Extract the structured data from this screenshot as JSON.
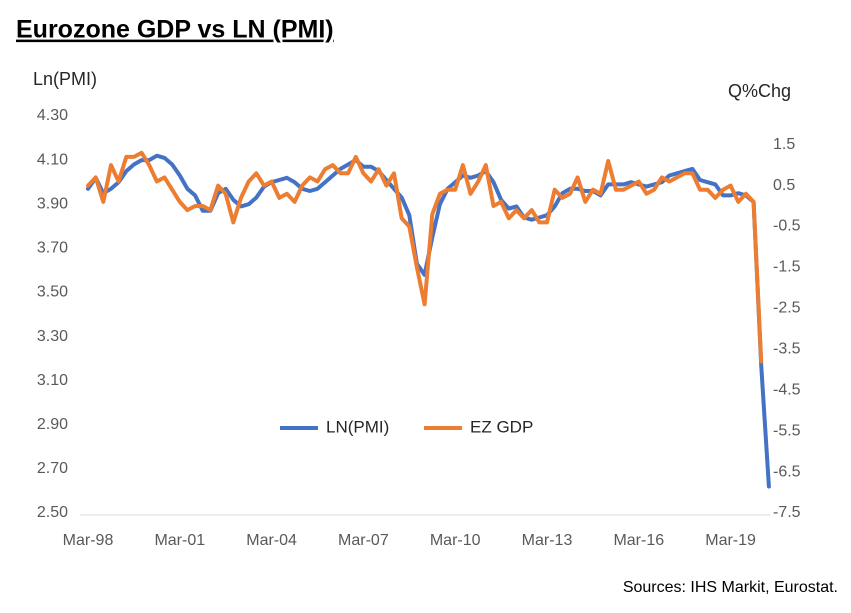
{
  "chart_data": {
    "type": "line",
    "title": "Eurozone GDP vs LN (PMI)",
    "y_axis_label": "Ln(PMI)",
    "y2_axis_label": "Q%Chg",
    "source": "Sources: IHS Markit, Eurostat.",
    "categories": [
      "Mar-98",
      null,
      null,
      null,
      null,
      null,
      null,
      null,
      null,
      null,
      null,
      null,
      "Mar-01",
      null,
      null,
      null,
      null,
      null,
      null,
      null,
      null,
      null,
      null,
      null,
      "Mar-04",
      null,
      null,
      null,
      null,
      null,
      null,
      null,
      null,
      null,
      null,
      null,
      "Mar-07",
      null,
      null,
      null,
      null,
      null,
      null,
      null,
      null,
      null,
      null,
      null,
      "Mar-10",
      null,
      null,
      null,
      null,
      null,
      null,
      null,
      null,
      null,
      null,
      null,
      "Mar-13",
      null,
      null,
      null,
      null,
      null,
      null,
      null,
      null,
      null,
      null,
      null,
      "Mar-16",
      null,
      null,
      null,
      null,
      null,
      null,
      null,
      null,
      null,
      null,
      null,
      "Mar-19",
      null,
      null,
      null,
      null,
      null
    ],
    "series": [
      {
        "name": "LN(PMI)",
        "color": "#4472c4",
        "axis": "y",
        "values": [
          3.97,
          4.02,
          3.95,
          3.97,
          4.0,
          4.05,
          4.08,
          4.1,
          4.1,
          4.12,
          4.11,
          4.08,
          4.03,
          3.97,
          3.94,
          3.87,
          3.87,
          3.95,
          3.97,
          3.92,
          3.89,
          3.9,
          3.93,
          3.98,
          4.0,
          4.01,
          4.02,
          4.0,
          3.97,
          3.96,
          3.97,
          4.0,
          4.03,
          4.06,
          4.08,
          4.1,
          4.07,
          4.07,
          4.05,
          4.01,
          3.97,
          3.93,
          3.85,
          3.63,
          3.58,
          3.75,
          3.9,
          3.97,
          4.0,
          4.03,
          4.02,
          4.03,
          4.05,
          4.0,
          3.92,
          3.88,
          3.89,
          3.84,
          3.83,
          3.84,
          3.85,
          3.89,
          3.95,
          3.97,
          3.97,
          3.96,
          3.96,
          3.94,
          3.99,
          3.99,
          3.99,
          4.0,
          3.99,
          3.98,
          3.99,
          4.0,
          4.03,
          4.04,
          4.05,
          4.06,
          4.01,
          4.0,
          3.99,
          3.94,
          3.94,
          3.95,
          3.94,
          3.91,
          3.17,
          2.62
        ]
      },
      {
        "name": "EZ GDP",
        "color": "#ed7d31",
        "axis": "y2",
        "values": [
          0.5,
          0.7,
          0.1,
          1.0,
          0.6,
          1.2,
          1.2,
          1.3,
          1.0,
          0.6,
          0.7,
          0.4,
          0.1,
          -0.1,
          0.0,
          0.0,
          -0.1,
          0.5,
          0.3,
          -0.4,
          0.2,
          0.6,
          0.8,
          0.5,
          0.6,
          0.2,
          0.3,
          0.1,
          0.5,
          0.7,
          0.6,
          0.9,
          1.0,
          0.8,
          0.8,
          1.2,
          0.8,
          0.6,
          0.9,
          0.5,
          0.8,
          -0.3,
          -0.5,
          -1.5,
          -2.4,
          -0.2,
          0.3,
          0.4,
          0.4,
          1.0,
          0.3,
          0.6,
          1.0,
          0.0,
          0.1,
          -0.3,
          -0.1,
          -0.3,
          -0.1,
          -0.4,
          -0.4,
          0.4,
          0.2,
          0.3,
          0.7,
          0.1,
          0.4,
          0.3,
          1.1,
          0.4,
          0.4,
          0.5,
          0.6,
          0.3,
          0.4,
          0.7,
          0.6,
          0.7,
          0.8,
          0.8,
          0.4,
          0.4,
          0.2,
          0.4,
          0.5,
          0.1,
          0.3,
          0.1,
          -3.8,
          null
        ]
      }
    ],
    "ylim": [
      2.5,
      4.3
    ],
    "yticks": [
      {
        "value": 2.5,
        "label": "2.50"
      },
      {
        "value": 2.7,
        "label": "2.70"
      },
      {
        "value": 2.9,
        "label": "2.90"
      },
      {
        "value": 3.1,
        "label": "3.10"
      },
      {
        "value": 3.3,
        "label": "3.30"
      },
      {
        "value": 3.5,
        "label": "3.50"
      },
      {
        "value": 3.7,
        "label": "3.70"
      },
      {
        "value": 3.9,
        "label": "3.90"
      },
      {
        "value": 4.1,
        "label": "4.10"
      },
      {
        "value": 4.3,
        "label": "4.30"
      }
    ],
    "y2lim": [
      -7.5,
      2.2
    ],
    "y2ticks": [
      -7.5,
      -6.5,
      -5.5,
      -4.5,
      -3.5,
      -2.5,
      -1.5,
      -0.5,
      0.5,
      1.5
    ],
    "grid": false,
    "legend": "center"
  }
}
